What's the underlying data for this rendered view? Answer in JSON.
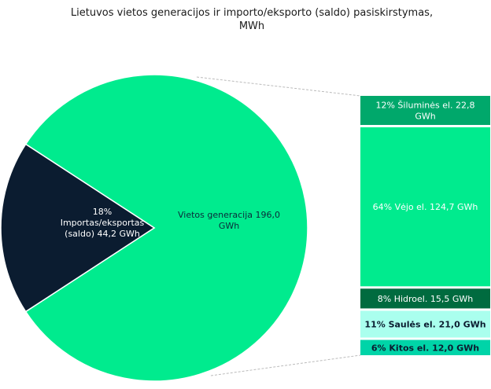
{
  "chart_data": {
    "type": "pie",
    "subtype": "pie-of-bar",
    "title": "Lietuvos vietos generacijos ir importo/eksporto (saldo) pasiskirstymas, MWh",
    "title_lines": [
      "Lietuvos vietos generacijos ir importo/eksporto (saldo) pasiskirstymas,",
      "MWh"
    ],
    "unit": "GWh",
    "pie": [
      {
        "name": "Vietos generacija",
        "value": 196.0,
        "percent": null,
        "label_lines": [
          "Vietos generacija   196,0",
          "GWh"
        ],
        "color": "#00eb8e",
        "text_color": "#0b2a3a"
      },
      {
        "name": "Importas/eksportas (saldo)",
        "value": 44.2,
        "percent": 18,
        "label_lines": [
          "18%",
          "Importas/eksportas",
          "(saldo)  44,2 GWh"
        ],
        "color": "#0b1c30",
        "text_color": "#ffffff"
      }
    ],
    "bar": [
      {
        "name": "Šiluminės el.",
        "value": 22.8,
        "percent": 12,
        "label_lines": [
          "12% Šiluminės el.  22,8",
          "GWh"
        ],
        "color": "#00a86b",
        "text_color": "#ffffff"
      },
      {
        "name": "Vėjo el.",
        "value": 124.7,
        "percent": 64,
        "label_lines": [
          "64% Vėjo el.  124,7 GWh"
        ],
        "color": "#00eb8e",
        "text_color": "#ffffff"
      },
      {
        "name": "Hidroel.",
        "value": 15.5,
        "percent": 8,
        "label_lines": [
          "8% Hidroel.  15,5 GWh"
        ],
        "color": "#006b3f",
        "text_color": "#ffffff"
      },
      {
        "name": "Saulės el.",
        "value": 21.0,
        "percent": 11,
        "label_lines": [
          "11% Saulės el.  21,0 GWh"
        ],
        "color": "#aaffee",
        "text_color": "#0b1c30"
      },
      {
        "name": "Kitos el.",
        "value": 12.0,
        "percent": 6,
        "label_lines": [
          "6% Kitos el.  12,0 GWh"
        ],
        "color": "#00d4a8",
        "text_color": "#0b1c30"
      }
    ],
    "connector_color": "#bbbbbb"
  }
}
